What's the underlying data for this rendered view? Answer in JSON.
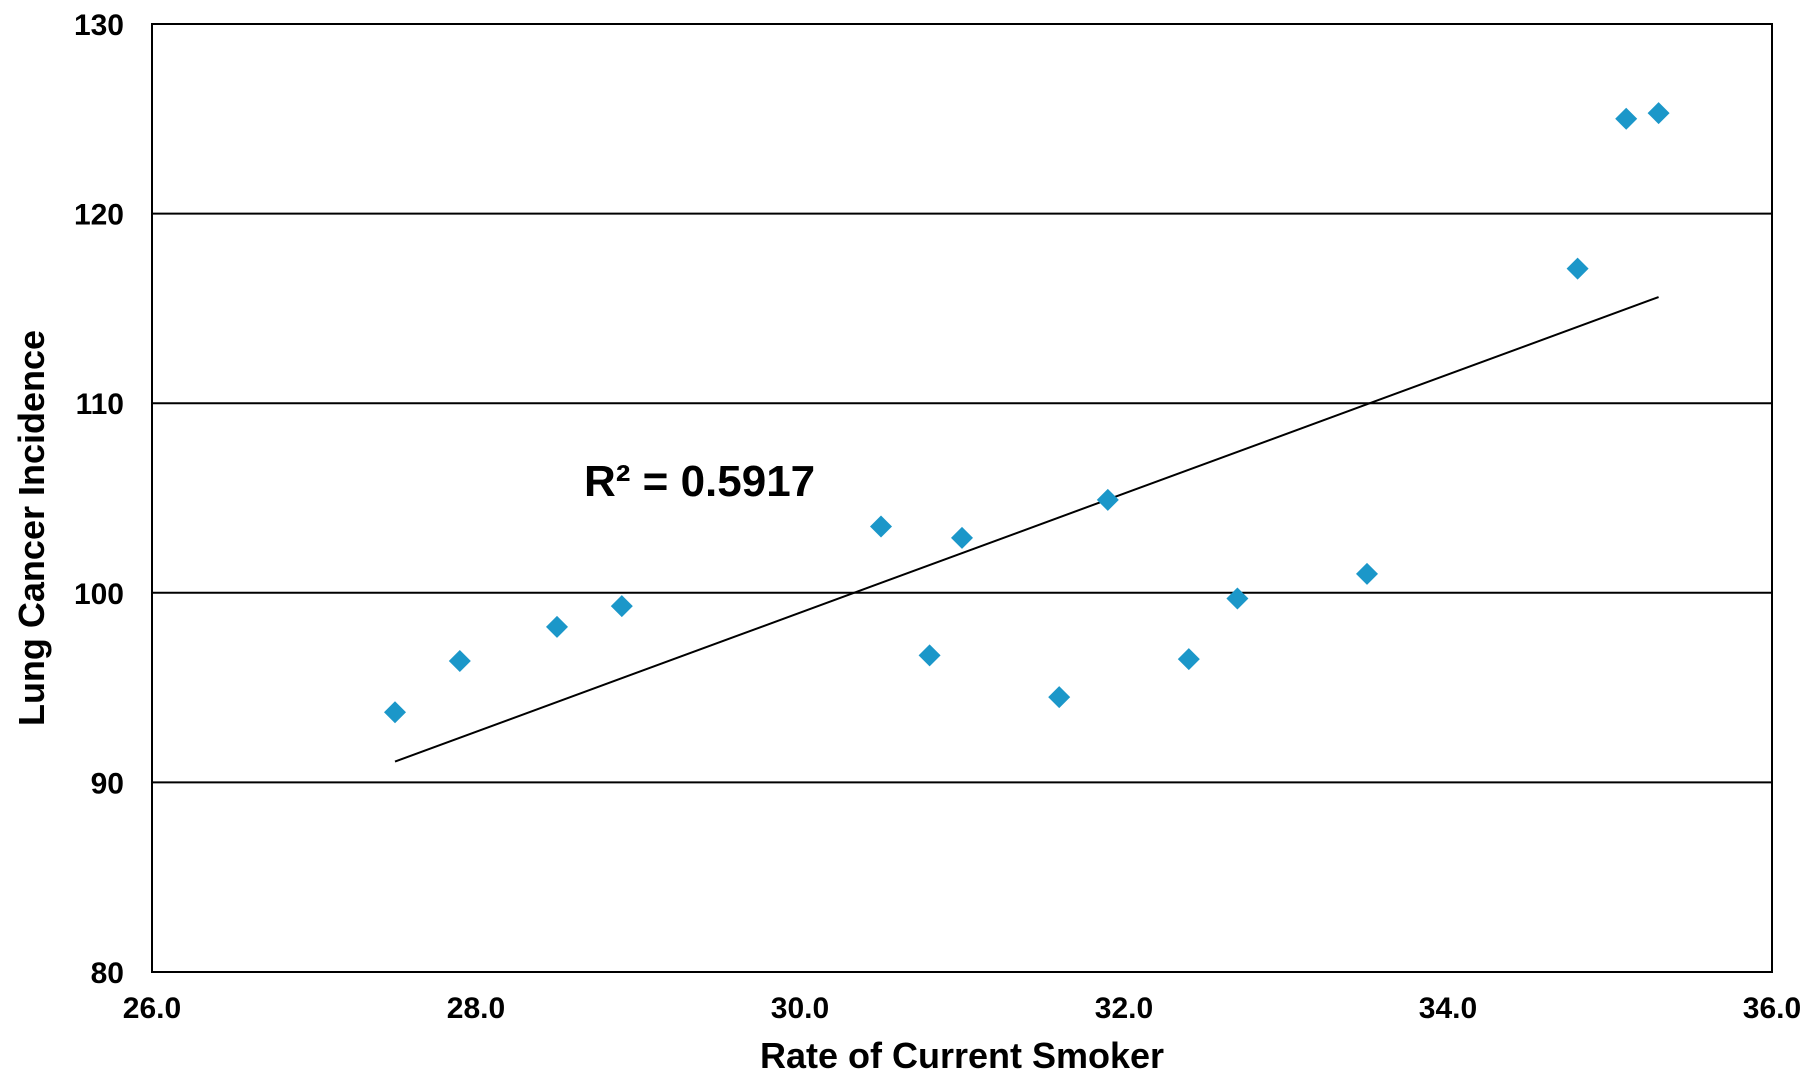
{
  "chart_data": {
    "type": "scatter",
    "title": "",
    "xlabel": "Rate of Current Smoker",
    "ylabel": "Lung Cancer Incidence",
    "xlim": [
      26.0,
      36.0
    ],
    "ylim": [
      80,
      130
    ],
    "x_ticks": [
      "26.0",
      "28.0",
      "30.0",
      "32.0",
      "34.0",
      "36.0"
    ],
    "y_ticks": [
      "80",
      "90",
      "100",
      "110",
      "120",
      "130"
    ],
    "grid": "horizontal",
    "marker": "diamond",
    "colors": {
      "points": "#1b97c9",
      "trendline": "#000000",
      "grid": "#000000"
    },
    "points": [
      {
        "x": 27.5,
        "y": 93.7
      },
      {
        "x": 27.9,
        "y": 96.4
      },
      {
        "x": 28.5,
        "y": 98.2
      },
      {
        "x": 28.9,
        "y": 99.3
      },
      {
        "x": 30.5,
        "y": 103.5
      },
      {
        "x": 30.8,
        "y": 96.7
      },
      {
        "x": 31.0,
        "y": 102.9
      },
      {
        "x": 31.6,
        "y": 94.5
      },
      {
        "x": 31.9,
        "y": 104.9
      },
      {
        "x": 32.4,
        "y": 96.5
      },
      {
        "x": 32.7,
        "y": 99.7
      },
      {
        "x": 33.5,
        "y": 101.0
      },
      {
        "x": 34.8,
        "y": 117.1
      },
      {
        "x": 35.1,
        "y": 125.0
      },
      {
        "x": 35.3,
        "y": 125.3
      }
    ],
    "trendline": {
      "x1": 27.5,
      "y1": 91.1,
      "x2": 35.3,
      "y2": 115.6
    },
    "annotation": "R² = 0.5917"
  }
}
